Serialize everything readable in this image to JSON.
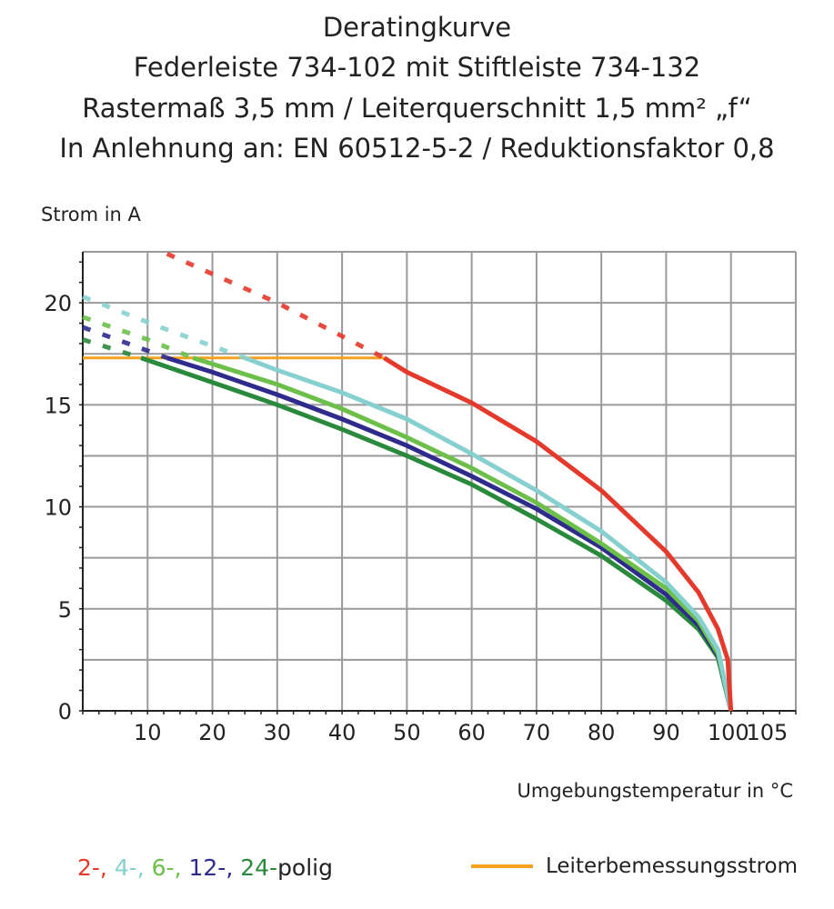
{
  "chart_data": {
    "type": "line",
    "title": [
      "Deratingkurve",
      "Federleiste 734-102 mit Stiftleiste 734-132",
      "Rastermaß 3,5 mm / Leiterquerschnitt 1,5 mm² „f“",
      "In Anlehnung an: EN 60512-5-2 / Reduktionsfaktor 0,8"
    ],
    "ylabel": "Strom in A",
    "xlabel": "Umgebungstemperatur in °C",
    "xlim": [
      0,
      110
    ],
    "ylim": [
      0,
      22.5
    ],
    "xticks": [
      10,
      20,
      30,
      40,
      50,
      60,
      70,
      80,
      90,
      100,
      105
    ],
    "yticks": [
      0,
      5,
      10,
      15,
      20
    ],
    "grid": true,
    "series": [
      {
        "name": "2-",
        "color": "#e5392b",
        "dashed": [
          [
            13,
            22.4
          ],
          [
            30,
            20
          ],
          [
            46.5,
            17.3
          ]
        ],
        "solid": [
          [
            46.5,
            17.3
          ],
          [
            50,
            16.6
          ],
          [
            60,
            15.1
          ],
          [
            70,
            13.2
          ],
          [
            80,
            10.8
          ],
          [
            90,
            7.8
          ],
          [
            95,
            5.8
          ],
          [
            98,
            4.0
          ],
          [
            99.5,
            2.5
          ],
          [
            100,
            0
          ]
        ]
      },
      {
        "name": "4-",
        "color": "#86d0d0",
        "dashed": [
          [
            0,
            20.3
          ],
          [
            12,
            18.8
          ],
          [
            25,
            17.3
          ]
        ],
        "solid": [
          [
            25,
            17.3
          ],
          [
            30,
            16.7
          ],
          [
            40,
            15.6
          ],
          [
            50,
            14.3
          ],
          [
            60,
            12.6
          ],
          [
            70,
            10.8
          ],
          [
            80,
            8.8
          ],
          [
            90,
            6.3
          ],
          [
            95,
            4.6
          ],
          [
            98,
            3.0
          ],
          [
            100,
            0
          ]
        ]
      },
      {
        "name": "6-",
        "color": "#6cc04a",
        "dashed": [
          [
            0,
            19.3
          ],
          [
            10,
            18.2
          ],
          [
            17,
            17.3
          ]
        ],
        "solid": [
          [
            17,
            17.3
          ],
          [
            20,
            17.0
          ],
          [
            30,
            16.0
          ],
          [
            40,
            14.8
          ],
          [
            50,
            13.4
          ],
          [
            60,
            11.9
          ],
          [
            70,
            10.2
          ],
          [
            80,
            8.2
          ],
          [
            90,
            6.0
          ],
          [
            95,
            4.4
          ],
          [
            98,
            2.8
          ],
          [
            100,
            0
          ]
        ]
      },
      {
        "name": "12-",
        "color": "#2e2b8c",
        "dashed": [
          [
            0,
            18.8
          ],
          [
            7,
            18.0
          ],
          [
            13,
            17.3
          ]
        ],
        "solid": [
          [
            13,
            17.3
          ],
          [
            20,
            16.6
          ],
          [
            30,
            15.5
          ],
          [
            40,
            14.3
          ],
          [
            50,
            13.0
          ],
          [
            60,
            11.5
          ],
          [
            70,
            9.9
          ],
          [
            80,
            8.0
          ],
          [
            90,
            5.7
          ],
          [
            95,
            4.2
          ],
          [
            98,
            2.7
          ],
          [
            100,
            0
          ]
        ]
      },
      {
        "name": "24-",
        "color": "#2a8a3c",
        "dashed": [
          [
            0,
            18.2
          ],
          [
            5,
            17.7
          ],
          [
            9,
            17.3
          ]
        ],
        "solid": [
          [
            9,
            17.3
          ],
          [
            20,
            16.1
          ],
          [
            30,
            15.0
          ],
          [
            40,
            13.8
          ],
          [
            50,
            12.5
          ],
          [
            60,
            11.1
          ],
          [
            70,
            9.4
          ],
          [
            80,
            7.6
          ],
          [
            90,
            5.4
          ],
          [
            95,
            4.0
          ],
          [
            98,
            2.6
          ],
          [
            100,
            0
          ]
        ]
      }
    ],
    "reference_line": {
      "name": "Leiterbemessungsstrom",
      "color": "#f5a11e",
      "y": 17.3,
      "x": [
        0,
        46.5
      ]
    },
    "legend": {
      "prefix_items": [
        "2-,",
        "4-,",
        "6-,",
        "12-,",
        "24-"
      ],
      "suffix": "polig",
      "placement": "bottom"
    }
  }
}
